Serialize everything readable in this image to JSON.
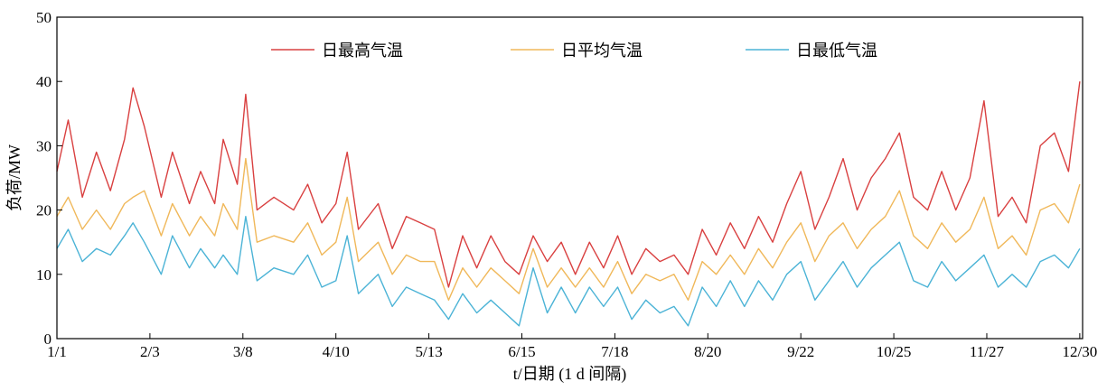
{
  "chart_data": {
    "type": "line",
    "xlabel": "t/日期 (1 d 间隔)",
    "ylabel": "负荷/MW",
    "ylim": [
      0,
      50
    ],
    "yticks": [
      0,
      10,
      20,
      30,
      40,
      50
    ],
    "xticks": [
      {
        "day": 1,
        "label": "1/1"
      },
      {
        "day": 34,
        "label": "2/3"
      },
      {
        "day": 67,
        "label": "3/8"
      },
      {
        "day": 100,
        "label": "4/10"
      },
      {
        "day": 133,
        "label": "5/13"
      },
      {
        "day": 166,
        "label": "6/15"
      },
      {
        "day": 199,
        "label": "7/18"
      },
      {
        "day": 232,
        "label": "8/20"
      },
      {
        "day": 265,
        "label": "9/22"
      },
      {
        "day": 298,
        "label": "10/25"
      },
      {
        "day": 331,
        "label": "11/27"
      },
      {
        "day": 364,
        "label": "12/30"
      }
    ],
    "legend_position": "top",
    "grid": false,
    "series": [
      {
        "name": "日最高气温",
        "color": "#d94040",
        "values": [
          [
            1,
            26
          ],
          [
            5,
            34
          ],
          [
            10,
            22
          ],
          [
            15,
            29
          ],
          [
            20,
            23
          ],
          [
            25,
            31
          ],
          [
            28,
            39
          ],
          [
            32,
            33
          ],
          [
            38,
            22
          ],
          [
            42,
            29
          ],
          [
            48,
            21
          ],
          [
            52,
            26
          ],
          [
            57,
            21
          ],
          [
            60,
            31
          ],
          [
            65,
            24
          ],
          [
            68,
            38
          ],
          [
            72,
            20
          ],
          [
            78,
            22
          ],
          [
            85,
            20
          ],
          [
            90,
            24
          ],
          [
            95,
            18
          ],
          [
            100,
            21
          ],
          [
            104,
            29
          ],
          [
            108,
            17
          ],
          [
            115,
            21
          ],
          [
            120,
            14
          ],
          [
            125,
            19
          ],
          [
            130,
            18
          ],
          [
            135,
            17
          ],
          [
            140,
            8
          ],
          [
            145,
            16
          ],
          [
            150,
            11
          ],
          [
            155,
            16
          ],
          [
            160,
            12
          ],
          [
            165,
            10
          ],
          [
            170,
            16
          ],
          [
            175,
            12
          ],
          [
            180,
            15
          ],
          [
            185,
            10
          ],
          [
            190,
            15
          ],
          [
            195,
            11
          ],
          [
            200,
            16
          ],
          [
            205,
            10
          ],
          [
            210,
            14
          ],
          [
            215,
            12
          ],
          [
            220,
            13
          ],
          [
            225,
            10
          ],
          [
            230,
            17
          ],
          [
            235,
            13
          ],
          [
            240,
            18
          ],
          [
            245,
            14
          ],
          [
            250,
            19
          ],
          [
            255,
            15
          ],
          [
            260,
            21
          ],
          [
            265,
            26
          ],
          [
            270,
            17
          ],
          [
            275,
            22
          ],
          [
            280,
            28
          ],
          [
            285,
            20
          ],
          [
            290,
            25
          ],
          [
            295,
            28
          ],
          [
            300,
            32
          ],
          [
            305,
            22
          ],
          [
            310,
            20
          ],
          [
            315,
            26
          ],
          [
            320,
            20
          ],
          [
            325,
            25
          ],
          [
            330,
            37
          ],
          [
            335,
            19
          ],
          [
            340,
            22
          ],
          [
            345,
            18
          ],
          [
            350,
            30
          ],
          [
            355,
            32
          ],
          [
            360,
            26
          ],
          [
            364,
            40
          ]
        ]
      },
      {
        "name": "日平均气温",
        "color": "#f0b85a",
        "values": [
          [
            1,
            19
          ],
          [
            5,
            22
          ],
          [
            10,
            17
          ],
          [
            15,
            20
          ],
          [
            20,
            17
          ],
          [
            25,
            21
          ],
          [
            28,
            22
          ],
          [
            32,
            23
          ],
          [
            38,
            16
          ],
          [
            42,
            21
          ],
          [
            48,
            16
          ],
          [
            52,
            19
          ],
          [
            57,
            16
          ],
          [
            60,
            21
          ],
          [
            65,
            17
          ],
          [
            68,
            28
          ],
          [
            72,
            15
          ],
          [
            78,
            16
          ],
          [
            85,
            15
          ],
          [
            90,
            18
          ],
          [
            95,
            13
          ],
          [
            100,
            15
          ],
          [
            104,
            22
          ],
          [
            108,
            12
          ],
          [
            115,
            15
          ],
          [
            120,
            10
          ],
          [
            125,
            13
          ],
          [
            130,
            12
          ],
          [
            135,
            12
          ],
          [
            140,
            6
          ],
          [
            145,
            11
          ],
          [
            150,
            8
          ],
          [
            155,
            11
          ],
          [
            160,
            9
          ],
          [
            165,
            7
          ],
          [
            170,
            14
          ],
          [
            175,
            8
          ],
          [
            180,
            11
          ],
          [
            185,
            8
          ],
          [
            190,
            11
          ],
          [
            195,
            8
          ],
          [
            200,
            12
          ],
          [
            205,
            7
          ],
          [
            210,
            10
          ],
          [
            215,
            9
          ],
          [
            220,
            10
          ],
          [
            225,
            6
          ],
          [
            230,
            12
          ],
          [
            235,
            10
          ],
          [
            240,
            13
          ],
          [
            245,
            10
          ],
          [
            250,
            14
          ],
          [
            255,
            11
          ],
          [
            260,
            15
          ],
          [
            265,
            18
          ],
          [
            270,
            12
          ],
          [
            275,
            16
          ],
          [
            280,
            18
          ],
          [
            285,
            14
          ],
          [
            290,
            17
          ],
          [
            295,
            19
          ],
          [
            300,
            23
          ],
          [
            305,
            16
          ],
          [
            310,
            14
          ],
          [
            315,
            18
          ],
          [
            320,
            15
          ],
          [
            325,
            17
          ],
          [
            330,
            22
          ],
          [
            335,
            14
          ],
          [
            340,
            16
          ],
          [
            345,
            13
          ],
          [
            350,
            20
          ],
          [
            355,
            21
          ],
          [
            360,
            18
          ],
          [
            364,
            24
          ]
        ]
      },
      {
        "name": "日最低气温",
        "color": "#4bb3d6",
        "values": [
          [
            1,
            14
          ],
          [
            5,
            17
          ],
          [
            10,
            12
          ],
          [
            15,
            14
          ],
          [
            20,
            13
          ],
          [
            25,
            16
          ],
          [
            28,
            18
          ],
          [
            32,
            15
          ],
          [
            38,
            10
          ],
          [
            42,
            16
          ],
          [
            48,
            11
          ],
          [
            52,
            14
          ],
          [
            57,
            11
          ],
          [
            60,
            13
          ],
          [
            65,
            10
          ],
          [
            68,
            19
          ],
          [
            72,
            9
          ],
          [
            78,
            11
          ],
          [
            85,
            10
          ],
          [
            90,
            13
          ],
          [
            95,
            8
          ],
          [
            100,
            9
          ],
          [
            104,
            16
          ],
          [
            108,
            7
          ],
          [
            115,
            10
          ],
          [
            120,
            5
          ],
          [
            125,
            8
          ],
          [
            130,
            7
          ],
          [
            135,
            6
          ],
          [
            140,
            3
          ],
          [
            145,
            7
          ],
          [
            150,
            4
          ],
          [
            155,
            6
          ],
          [
            160,
            4
          ],
          [
            165,
            2
          ],
          [
            170,
            11
          ],
          [
            175,
            4
          ],
          [
            180,
            8
          ],
          [
            185,
            4
          ],
          [
            190,
            8
          ],
          [
            195,
            5
          ],
          [
            200,
            8
          ],
          [
            205,
            3
          ],
          [
            210,
            6
          ],
          [
            215,
            4
          ],
          [
            220,
            5
          ],
          [
            225,
            2
          ],
          [
            230,
            8
          ],
          [
            235,
            5
          ],
          [
            240,
            9
          ],
          [
            245,
            5
          ],
          [
            250,
            9
          ],
          [
            255,
            6
          ],
          [
            260,
            10
          ],
          [
            265,
            12
          ],
          [
            270,
            6
          ],
          [
            275,
            9
          ],
          [
            280,
            12
          ],
          [
            285,
            8
          ],
          [
            290,
            11
          ],
          [
            295,
            13
          ],
          [
            300,
            15
          ],
          [
            305,
            9
          ],
          [
            310,
            8
          ],
          [
            315,
            12
          ],
          [
            320,
            9
          ],
          [
            325,
            11
          ],
          [
            330,
            13
          ],
          [
            335,
            8
          ],
          [
            340,
            10
          ],
          [
            345,
            8
          ],
          [
            350,
            12
          ],
          [
            355,
            13
          ],
          [
            360,
            11
          ],
          [
            364,
            14
          ]
        ]
      }
    ]
  }
}
